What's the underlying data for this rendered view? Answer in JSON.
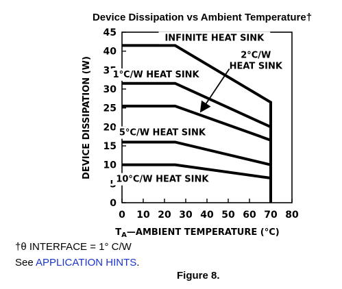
{
  "chart_data": {
    "type": "line",
    "title": "Device Dissipation vs Ambient Temperature†",
    "xlabel_subscript_main": "T",
    "xlabel_subscript": "A",
    "xlabel_rest": "—AMBIENT TEMPERATURE (°C)",
    "ylabel": "DEVICE DISSIPATION (W)",
    "xlim": [
      0,
      80
    ],
    "ylim": [
      0,
      45
    ],
    "xticks": [
      "0",
      "10",
      "20",
      "30",
      "40",
      "50",
      "60",
      "70",
      "80"
    ],
    "yticks": [
      "0",
      "5",
      "10",
      "15",
      "20",
      "25",
      "30",
      "35",
      "40",
      "45"
    ],
    "grid": false,
    "series": [
      {
        "name": "INFINITE HEAT SINK",
        "x": [
          0,
          25,
          70,
          70
        ],
        "y": [
          41.5,
          41.5,
          26.5,
          0
        ]
      },
      {
        "name": "1°C/W HEAT SINK",
        "x": [
          0,
          25,
          70
        ],
        "y": [
          31.5,
          31.5,
          20
        ]
      },
      {
        "name": "2°C/W HEAT SINK",
        "x": [
          0,
          25,
          70
        ],
        "y": [
          25.5,
          25.5,
          16.5
        ]
      },
      {
        "name": "5°C/W HEAT SINK",
        "x": [
          0,
          25,
          70
        ],
        "y": [
          16,
          16,
          10
        ]
      },
      {
        "name": "10°C/W HEAT SINK",
        "x": [
          0,
          25,
          70
        ],
        "y": [
          10,
          10,
          6.5
        ]
      }
    ],
    "annotations": [
      {
        "lines": [
          "INFINITE HEAT SINK"
        ],
        "x": 43.5,
        "y": 43.5
      },
      {
        "lines": [
          "1°C/W HEAT SINK"
        ],
        "x": 16,
        "y": 33.8
      },
      {
        "lines": [
          "2°C/W",
          "HEAT SINK"
        ],
        "x": 63,
        "y": 37.5,
        "arrow_to": [
          37,
          24
        ]
      },
      {
        "lines": [
          "5°C/W HEAT SINK"
        ],
        "x": 19,
        "y": 18.5
      },
      {
        "lines": [
          "10°C/W HEAT SINK"
        ],
        "x": 19,
        "y": 6.2
      }
    ]
  },
  "footnote": {
    "interface_text": "†θ INTERFACE = 1° C/W",
    "see_prefix": "See ",
    "link_text": "APPLICATION HINTS",
    "see_suffix": "."
  },
  "figure_caption": "Figure 8."
}
